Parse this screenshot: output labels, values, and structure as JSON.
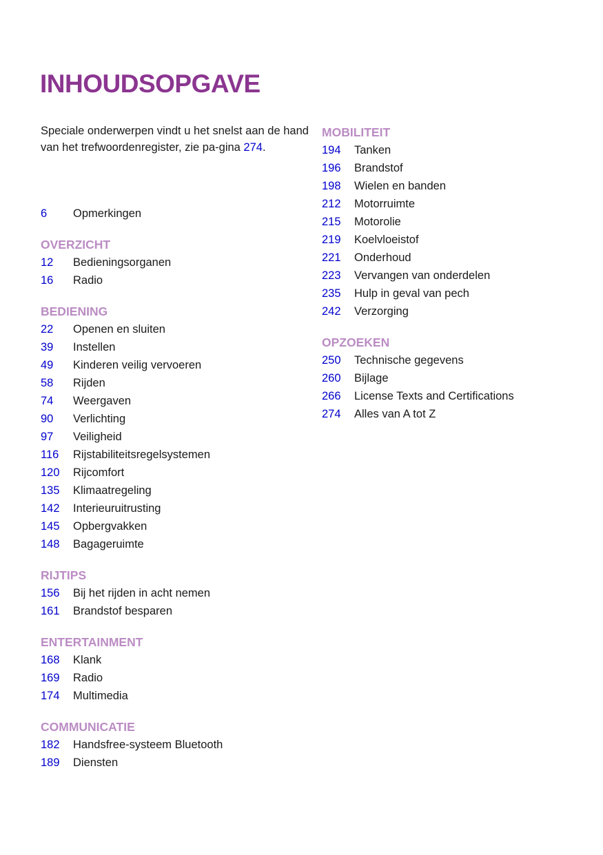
{
  "title": "INHOUDSOPGAVE",
  "intro": {
    "text": "Speciale onderwerpen vindt u het snelst aan de hand van het trefwoordenregister, zie pa-gina ",
    "page_ref": "274",
    "end": "."
  },
  "colors": {
    "title": "#8b3590",
    "section": "#bb8cc4",
    "page_number": "#0000cc"
  },
  "left_column": [
    {
      "header": "",
      "items": [
        {
          "page": "6",
          "label": "Opmerkingen"
        }
      ]
    },
    {
      "header": "OVERZICHT",
      "items": [
        {
          "page": "12",
          "label": "Bedieningsorganen"
        },
        {
          "page": "16",
          "label": "Radio"
        }
      ]
    },
    {
      "header": "BEDIENING",
      "items": [
        {
          "page": "22",
          "label": "Openen en sluiten"
        },
        {
          "page": "39",
          "label": "Instellen"
        },
        {
          "page": "49",
          "label": "Kinderen veilig vervoeren"
        },
        {
          "page": "58",
          "label": "Rijden"
        },
        {
          "page": "74",
          "label": "Weergaven"
        },
        {
          "page": "90",
          "label": "Verlichting"
        },
        {
          "page": "97",
          "label": "Veiligheid"
        },
        {
          "page": "116",
          "label": "Rijstabiliteitsregelsystemen"
        },
        {
          "page": "120",
          "label": "Rijcomfort"
        },
        {
          "page": "135",
          "label": "Klimaatregeling"
        },
        {
          "page": "142",
          "label": "Interieuruitrusting"
        },
        {
          "page": "145",
          "label": "Opbergvakken"
        },
        {
          "page": "148",
          "label": "Bagageruimte"
        }
      ]
    },
    {
      "header": "RIJTIPS",
      "items": [
        {
          "page": "156",
          "label": "Bij het rijden in acht nemen"
        },
        {
          "page": "161",
          "label": "Brandstof besparen"
        }
      ]
    },
    {
      "header": "ENTERTAINMENT",
      "items": [
        {
          "page": "168",
          "label": "Klank"
        },
        {
          "page": "169",
          "label": "Radio"
        },
        {
          "page": "174",
          "label": "Multimedia"
        }
      ]
    },
    {
      "header": "COMMUNICATIE",
      "items": [
        {
          "page": "182",
          "label": "Handsfree-systeem Bluetooth"
        },
        {
          "page": "189",
          "label": "Diensten"
        }
      ]
    }
  ],
  "right_column": [
    {
      "header": "MOBILITEIT",
      "items": [
        {
          "page": "194",
          "label": "Tanken"
        },
        {
          "page": "196",
          "label": "Brandstof"
        },
        {
          "page": "198",
          "label": "Wielen en banden"
        },
        {
          "page": "212",
          "label": "Motorruimte"
        },
        {
          "page": "215",
          "label": "Motorolie"
        },
        {
          "page": "219",
          "label": "Koelvloeistof"
        },
        {
          "page": "221",
          "label": "Onderhoud"
        },
        {
          "page": "223",
          "label": "Vervangen van onderdelen"
        },
        {
          "page": "235",
          "label": "Hulp in geval van pech"
        },
        {
          "page": "242",
          "label": "Verzorging"
        }
      ]
    },
    {
      "header": "OPZOEKEN",
      "items": [
        {
          "page": "250",
          "label": "Technische gegevens"
        },
        {
          "page": "260",
          "label": "Bijlage"
        },
        {
          "page": "266",
          "label": "License Texts and Certifications"
        },
        {
          "page": "274",
          "label": "Alles van A tot Z"
        }
      ]
    }
  ]
}
